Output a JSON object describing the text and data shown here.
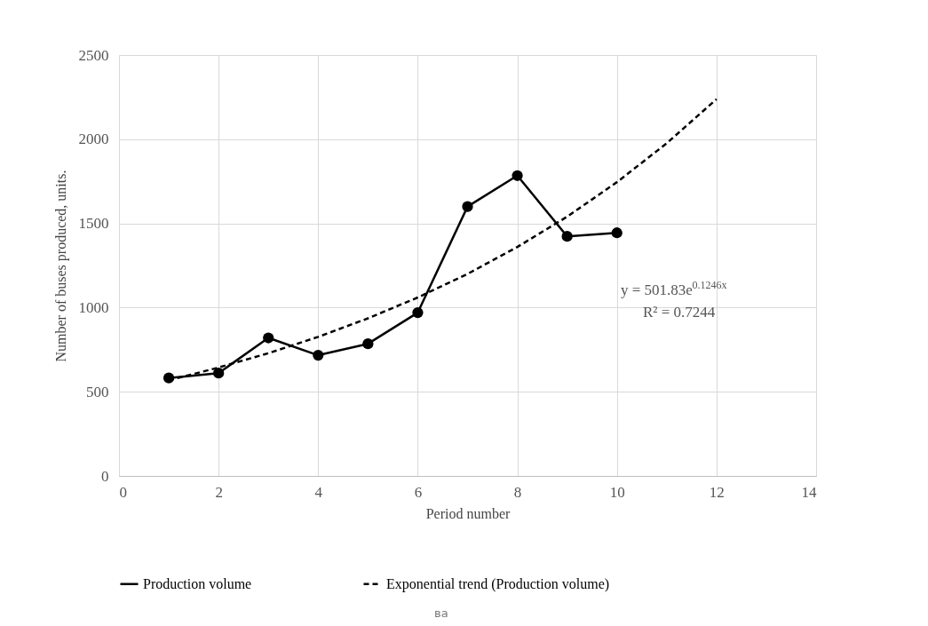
{
  "chart_data": {
    "type": "line",
    "xlabel": "Period number",
    "ylabel": "Number of buses produced, units.",
    "xlim": [
      0,
      14
    ],
    "xticks": [
      0,
      2,
      4,
      6,
      8,
      10,
      12,
      14
    ],
    "ylim": [
      0,
      2500
    ],
    "yticks": [
      0,
      500,
      1000,
      1500,
      2000,
      2500
    ],
    "grid": true,
    "legend": "bottom",
    "series": [
      {
        "name": "Production volume",
        "color": "#000000",
        "marker": "circle",
        "line_style": "solid",
        "x": [
          1,
          2,
          3,
          4,
          5,
          6,
          7,
          8,
          9,
          10
        ],
        "values": [
          582,
          611,
          820,
          717,
          785,
          970,
          1600,
          1784,
          1423,
          1444
        ]
      },
      {
        "name": "Exponential trend (Production volume)",
        "color": "#000000",
        "marker": "none",
        "line_style": "dashed",
        "x": [
          1,
          2,
          3,
          4,
          5,
          6,
          7,
          8,
          9,
          10,
          11,
          12
        ],
        "values": [
          568,
          644,
          729,
          826,
          936,
          1060,
          1200,
          1360,
          1540,
          1745,
          1976,
          2238
        ]
      }
    ],
    "annotations": [
      "y = 501.83e$^{0.1246x}$",
      "R² = 0.7244",
      "ва"
    ]
  }
}
